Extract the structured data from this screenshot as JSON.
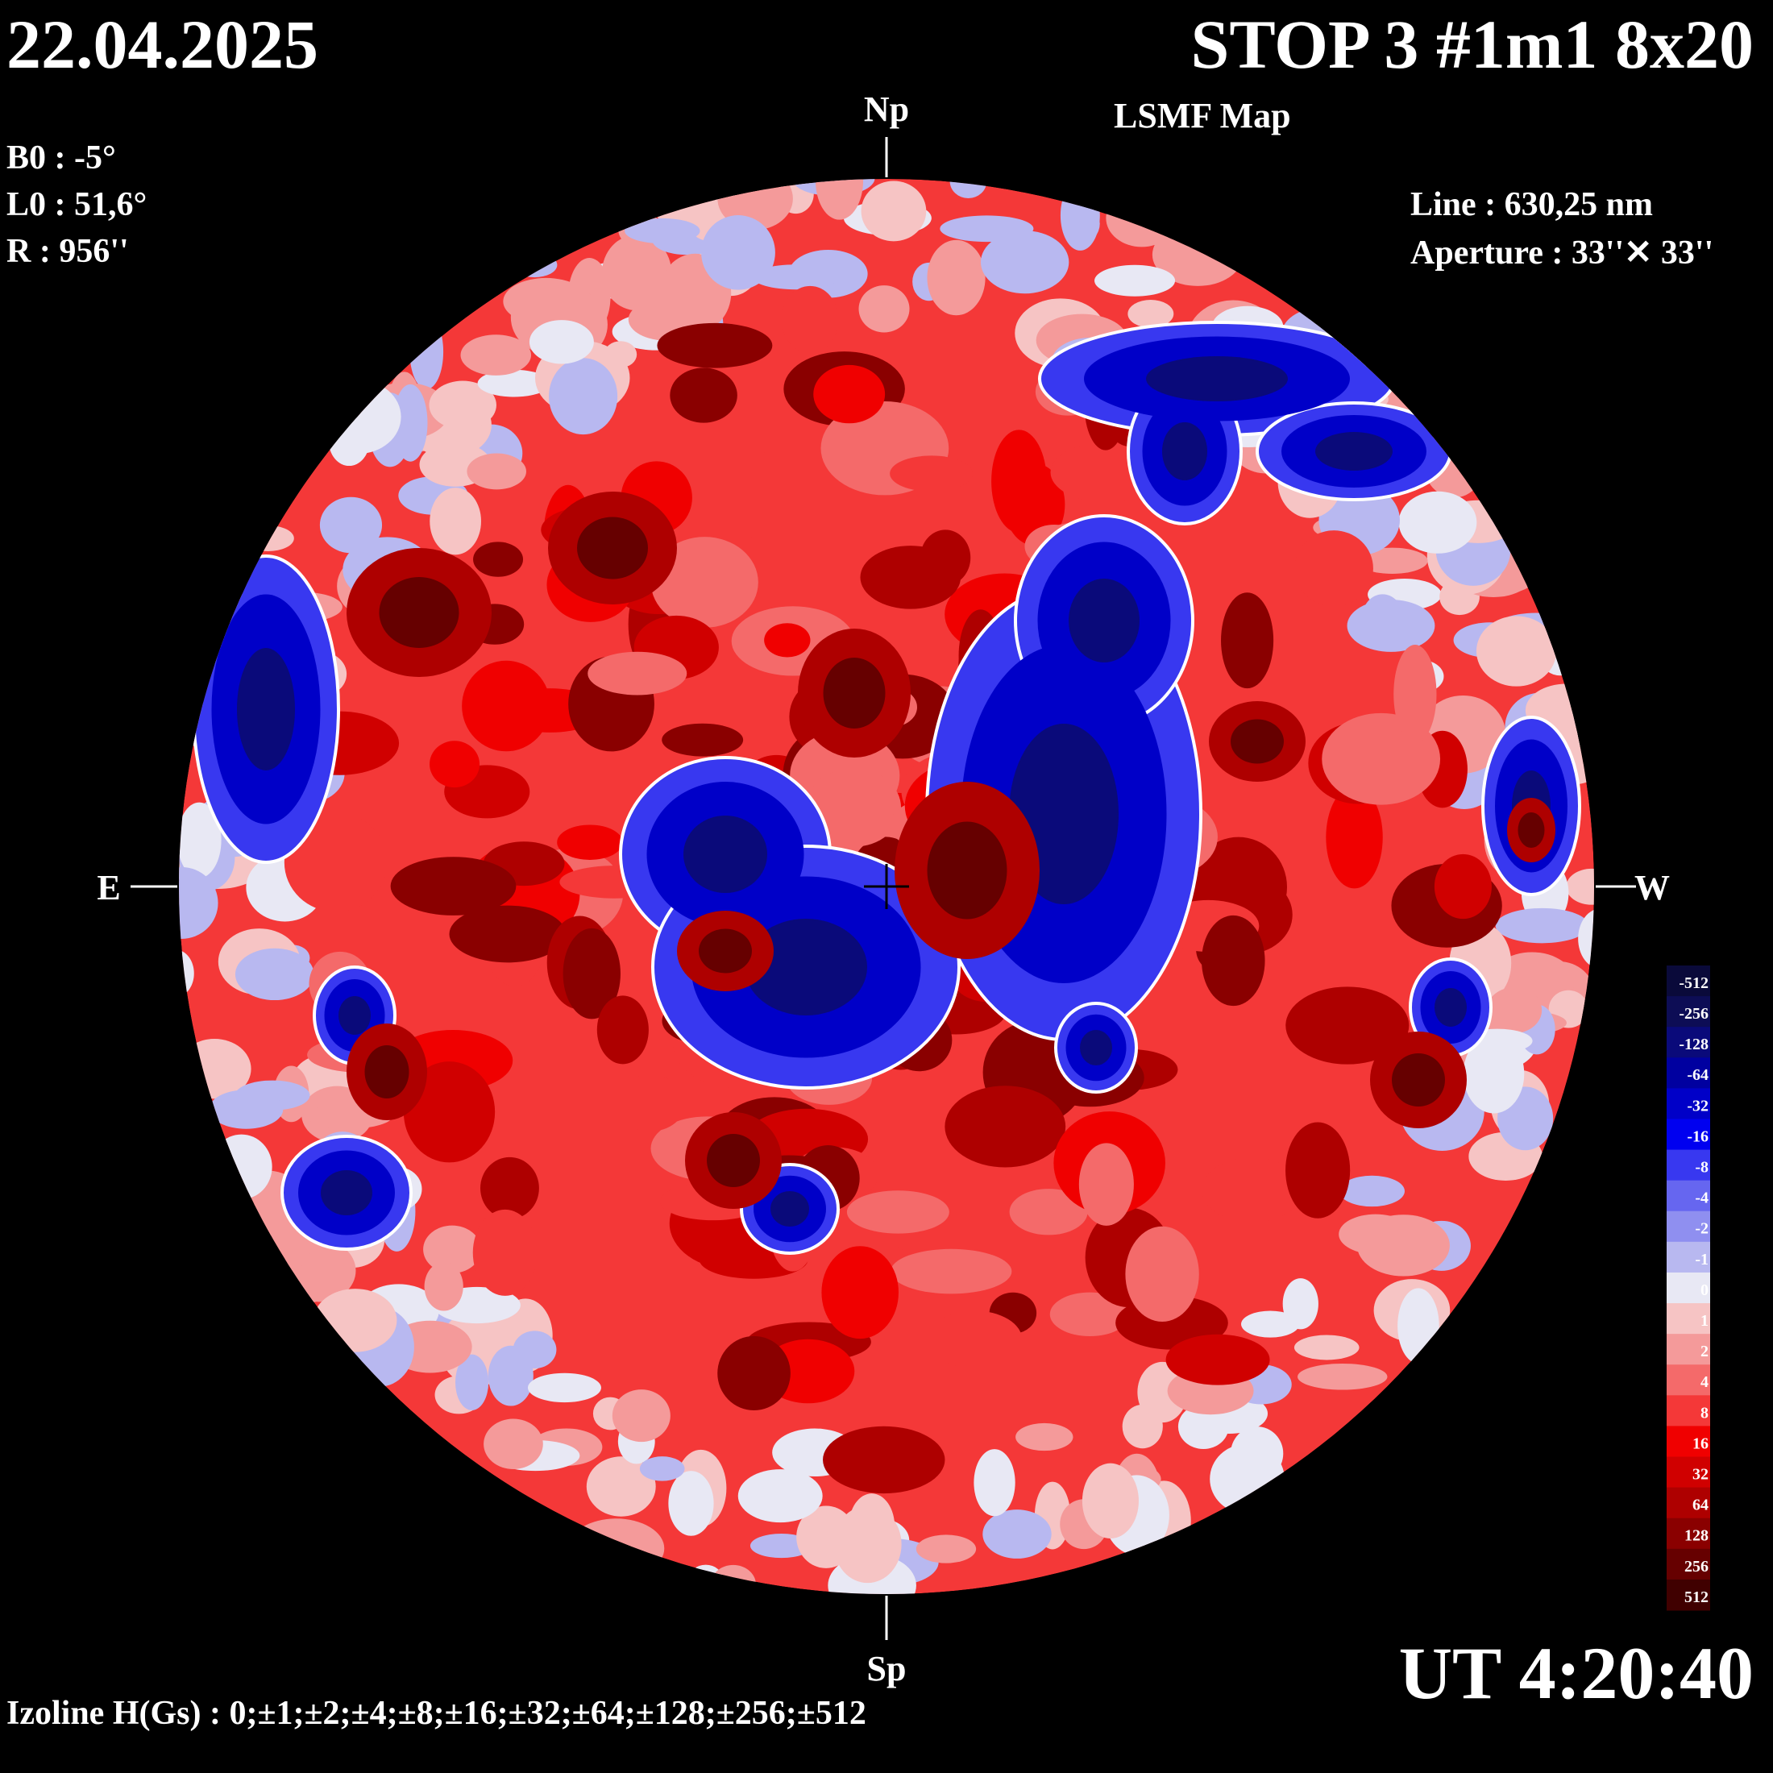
{
  "header": {
    "date": "22.04.2025",
    "title": "STOP 3 #1m1 8x20",
    "subtitle": "LSMF  Map"
  },
  "params": {
    "b0": "B0 : -5°",
    "l0": "L0 : 51,6°",
    "r": "R  : 956''"
  },
  "instrument": {
    "line": "Line :  630,25 nm",
    "aperture": "Aperture : 33''✕ 33''"
  },
  "directions": {
    "north": "Np",
    "south": "Sp",
    "east": "E",
    "west": "W"
  },
  "footer": {
    "ut": "UT 4:20:40",
    "izoline": "Izoline H(Gs) : 0;±1;±2;±4;±8;±16;±32;±64;±128;±256;±512"
  },
  "colorbar": {
    "levels": [
      {
        "label": "-512",
        "color": "#0a0a3a"
      },
      {
        "label": "-256",
        "color": "#0d0d55"
      },
      {
        "label": "-128",
        "color": "#0a0a7a"
      },
      {
        "label": "-64",
        "color": "#0000a0"
      },
      {
        "label": "-32",
        "color": "#0000c8"
      },
      {
        "label": "-16",
        "color": "#0000f0"
      },
      {
        "label": "-8",
        "color": "#3838f0"
      },
      {
        "label": "-4",
        "color": "#6666f0"
      },
      {
        "label": "-2",
        "color": "#8f8ff0"
      },
      {
        "label": "-1",
        "color": "#b8b8f0"
      },
      {
        "label": "0",
        "color": "#e8e8f4"
      },
      {
        "label": "1",
        "color": "#f6c4c4"
      },
      {
        "label": "2",
        "color": "#f49a9a"
      },
      {
        "label": "4",
        "color": "#f46a6a"
      },
      {
        "label": "8",
        "color": "#f43838"
      },
      {
        "label": "16",
        "color": "#f00000"
      },
      {
        "label": "32",
        "color": "#d00000"
      },
      {
        "label": "64",
        "color": "#ae0000"
      },
      {
        "label": "128",
        "color": "#8a0000"
      },
      {
        "label": "256",
        "color": "#660000"
      },
      {
        "label": "512",
        "color": "#400000"
      }
    ]
  },
  "colors": {
    "background": "#000000",
    "positive_base": "#f43838",
    "negative_base": "#0000f0",
    "zero_line": "#ffffff"
  }
}
